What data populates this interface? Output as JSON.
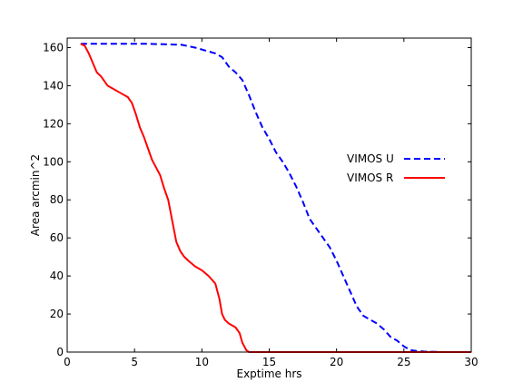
{
  "chart_data": {
    "type": "line",
    "title": "",
    "xlabel": "Exptime hrs",
    "ylabel": "Area arcmin^2",
    "xlim": [
      0,
      30
    ],
    "ylim": [
      0,
      165
    ],
    "xticks": [
      0,
      5,
      10,
      15,
      20,
      25,
      30
    ],
    "yticks": [
      0,
      20,
      40,
      60,
      80,
      100,
      120,
      140,
      160
    ],
    "xtick_labels": [
      "0",
      "5",
      "10",
      "15",
      "20",
      "25",
      "30"
    ],
    "ytick_labels": [
      "0",
      "20",
      "40",
      "60",
      "80",
      "100",
      "120",
      "140",
      "160"
    ],
    "grid": false,
    "legend_placement": "center-right",
    "series": [
      {
        "name": "VIMOS U",
        "color": "#0000ff",
        "style": "dashed",
        "x": [
          1.0,
          3.0,
          6.0,
          8.5,
          9.5,
          10.5,
          11.0,
          11.5,
          12.0,
          12.5,
          13.0,
          13.5,
          14.0,
          14.5,
          15.0,
          15.5,
          16.0,
          16.5,
          17.0,
          17.5,
          18.0,
          18.5,
          19.0,
          19.5,
          20.0,
          20.5,
          21.0,
          21.5,
          22.0,
          22.5,
          23.0,
          23.5,
          24.0,
          24.5,
          25.0,
          25.5,
          26.0,
          26.5,
          27.0,
          28.0,
          29.0,
          30.0
        ],
        "y": [
          162,
          162,
          162,
          161.5,
          160,
          158,
          157,
          155,
          150,
          147,
          143,
          135,
          126,
          118,
          112,
          105,
          100,
          94,
          87,
          79,
          70,
          65,
          60,
          55,
          48,
          40,
          32,
          24,
          19,
          17,
          15,
          12,
          8,
          6,
          3,
          1,
          0.5,
          0.3,
          0.2,
          0,
          0,
          0
        ]
      },
      {
        "name": "VIMOS R",
        "color": "#ff0000",
        "style": "solid",
        "x": [
          1.0,
          1.3,
          1.6,
          1.9,
          2.2,
          2.5,
          2.8,
          3.0,
          3.5,
          4.0,
          4.5,
          4.8,
          5.1,
          5.4,
          5.7,
          6.0,
          6.3,
          6.6,
          6.9,
          7.2,
          7.5,
          7.8,
          8.1,
          8.4,
          8.7,
          9.0,
          9.5,
          10.0,
          10.5,
          11.0,
          11.3,
          11.5,
          11.7,
          12.0,
          12.5,
          12.8,
          13.0,
          13.3,
          13.5,
          14.0,
          16.0,
          20.0,
          25.0,
          30.0
        ],
        "y": [
          162,
          161,
          157,
          152,
          147,
          145,
          142,
          140,
          138,
          136,
          134,
          131,
          125,
          118,
          113,
          107,
          101,
          97,
          93,
          86,
          80,
          69,
          58,
          53,
          50,
          48,
          45,
          43,
          40,
          36,
          28,
          20,
          17,
          15,
          13,
          10,
          5,
          1,
          0,
          0,
          0,
          0,
          0,
          0
        ]
      }
    ]
  }
}
